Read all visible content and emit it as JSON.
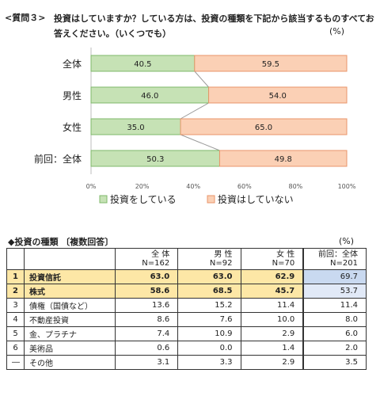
{
  "question": {
    "label": "<質問３>",
    "text": "投資はしていますか？している方は、投資の種類を下記から該当するものすべてお答えください。（いくつでも）",
    "unit": "(%)"
  },
  "colors": {
    "invest": "#c6e2b5",
    "no_invest": "#fbd0b5",
    "invest_border": "#7fb86a",
    "no_invest_border": "#e8956a"
  },
  "chart_data": {
    "type": "bar",
    "orientation": "horizontal-stacked-100",
    "categories": [
      "全体",
      "男性",
      "女性",
      "前回：全体"
    ],
    "series": [
      {
        "name": "投資をしている",
        "values": [
          40.5,
          46.0,
          35.0,
          50.3
        ]
      },
      {
        "name": "投資はしていない",
        "values": [
          59.5,
          54.0,
          65.0,
          49.8
        ]
      }
    ],
    "value_labels": [
      [
        "40.5",
        "46.0",
        "35.0",
        "50.3"
      ],
      [
        "59.5",
        "54.0",
        "65.0",
        "49.8"
      ]
    ],
    "xlim": [
      0,
      100
    ],
    "xticks": [
      "0%",
      "20%",
      "40%",
      "60%",
      "80%",
      "100%"
    ],
    "legend": "bottom",
    "grid": false
  },
  "types_section": {
    "title": "◆投資の種類 〔複数回答〕",
    "unit": "(%)",
    "headers": [
      {
        "line1": "全 体",
        "line2": "N=162"
      },
      {
        "line1": "男 性",
        "line2": "N=92"
      },
      {
        "line1": "女 性",
        "line2": "N=70"
      },
      {
        "line1": "前回：全体",
        "line2": "N=201"
      }
    ],
    "rows": [
      {
        "rank": "1",
        "label": "投資信託",
        "values": [
          "63.0",
          "63.0",
          "62.9",
          "69.7"
        ]
      },
      {
        "rank": "2",
        "label": "株式",
        "values": [
          "58.6",
          "68.5",
          "45.7",
          "53.7"
        ]
      },
      {
        "rank": "3",
        "label": "債権（国債など）",
        "values": [
          "13.6",
          "15.2",
          "11.4",
          "11.4"
        ]
      },
      {
        "rank": "4",
        "label": "不動産投資",
        "values": [
          "8.6",
          "7.6",
          "10.0",
          "8.0"
        ]
      },
      {
        "rank": "5",
        "label": "金、プラチナ",
        "values": [
          "7.4",
          "10.9",
          "2.9",
          "6.0"
        ]
      },
      {
        "rank": "6",
        "label": "美術品",
        "values": [
          "0.6",
          "0.0",
          "1.4",
          "2.0"
        ]
      },
      {
        "rank": "―",
        "label": "その他",
        "values": [
          "3.1",
          "3.3",
          "2.9",
          "3.5"
        ]
      }
    ]
  }
}
